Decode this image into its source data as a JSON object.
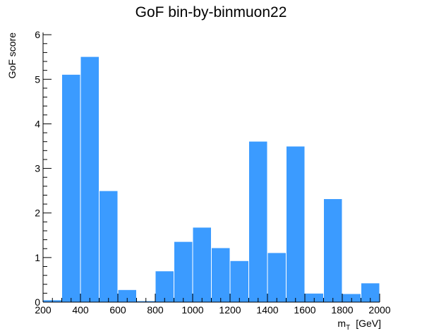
{
  "chart_data": {
    "type": "bar",
    "title": "GoF bin-by-binmuon22",
    "xlabel": "m",
    "xlabel_subscript": "T",
    "xlabel_unit": "[GeV]",
    "ylabel": "GoF score",
    "xlim": [
      200,
      2000
    ],
    "ylim": [
      0,
      6.05
    ],
    "bin_edges": [
      200,
      300,
      400,
      500,
      600,
      700,
      800,
      900,
      1000,
      1100,
      1200,
      1300,
      1400,
      1500,
      1600,
      1700,
      1800,
      1900,
      2000
    ],
    "values": [
      0.05,
      5.11,
      5.51,
      2.5,
      0.28,
      0.03,
      0.7,
      1.36,
      1.68,
      1.22,
      0.93,
      3.61,
      1.11,
      3.5,
      0.2,
      2.32,
      0.19,
      0.43
    ],
    "x_tick_labels": [
      "200",
      "400",
      "600",
      "800",
      "1000",
      "1200",
      "1400",
      "1600",
      "1800",
      "2000"
    ],
    "x_tick_values": [
      200,
      400,
      600,
      800,
      1000,
      1200,
      1400,
      1600,
      1800,
      2000
    ],
    "y_tick_labels": [
      "0",
      "1",
      "2",
      "3",
      "4",
      "5",
      "6"
    ],
    "y_tick_values": [
      0,
      1,
      2,
      3,
      4,
      5,
      6
    ],
    "bar_color": "#3b9bff",
    "grid": false,
    "legend": "none"
  }
}
